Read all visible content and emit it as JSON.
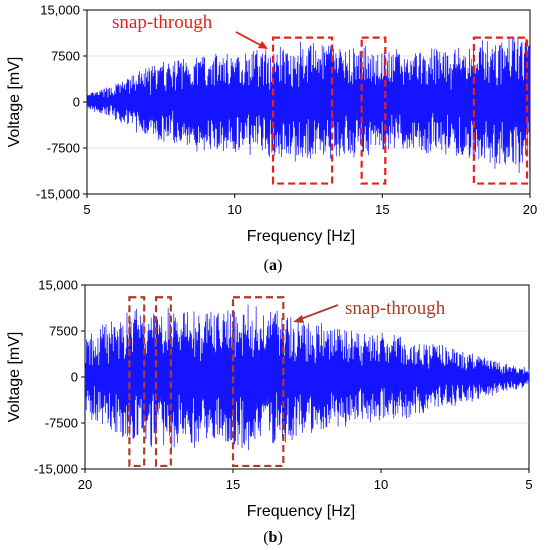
{
  "chart_data": [
    {
      "type": "line",
      "panel_label": "(a)",
      "caption_letter": "a",
      "xlabel": "Frequency [Hz]",
      "ylabel": "Voltage [mV]",
      "xlim": [
        5,
        20
      ],
      "ylim": [
        -15000,
        15000
      ],
      "x_reversed": false,
      "x_ticks": [
        5,
        10,
        15,
        20
      ],
      "y_ticks": [
        -15000,
        -7500,
        0,
        7500,
        15000
      ],
      "y_tick_labels": [
        "-15,000",
        "-7500",
        "0",
        "7500",
        "15,000"
      ],
      "x_tick_labels": [
        "5",
        "10",
        "15",
        "20"
      ],
      "series": [
        {
          "color": "#1414ff",
          "envelope": {
            "x": [
              5,
              6,
              7,
              8,
              9,
              10,
              11,
              12,
              13,
              14,
              15,
              16,
              17,
              18,
              19,
              20
            ],
            "amplitude": [
              1200,
              3000,
              5500,
              7000,
              7800,
              8200,
              8500,
              9500,
              9500,
              9000,
              8500,
              8000,
              8500,
              9500,
              10500,
              11500
            ]
          }
        }
      ],
      "annotation": {
        "text": "snap-through",
        "color": "#e8201a"
      },
      "highlight_boxes": [
        {
          "x": [
            11.3,
            13.3
          ],
          "y": [
            -13300,
            10500
          ]
        },
        {
          "x": [
            14.3,
            15.1
          ],
          "y": [
            -13300,
            10500
          ]
        },
        {
          "x": [
            18.1,
            19.9
          ],
          "y": [
            -13300,
            10500
          ]
        }
      ]
    },
    {
      "type": "line",
      "panel_label": "(b)",
      "caption_letter": "b",
      "xlabel": "Frequency [Hz]",
      "ylabel": "Voltage [mV]",
      "xlim": [
        20,
        5
      ],
      "ylim": [
        -15000,
        15000
      ],
      "x_reversed": true,
      "x_ticks": [
        20,
        15,
        10,
        5
      ],
      "y_ticks": [
        -15000,
        -7500,
        0,
        7500,
        15000
      ],
      "y_tick_labels": [
        "-15,000",
        "-7500",
        "0",
        "7500",
        "15,000"
      ],
      "x_tick_labels": [
        "20",
        "15",
        "10",
        "5"
      ],
      "series": [
        {
          "color": "#1414ff",
          "envelope": {
            "x": [
              20,
              19,
              18,
              17,
              16,
              15,
              14,
              13,
              12,
              11,
              10,
              9,
              8,
              7,
              6,
              5
            ],
            "amplitude": [
              6000,
              9500,
              11000,
              11500,
              10500,
              11500,
              11000,
              10000,
              8500,
              7500,
              7000,
              6500,
              5000,
              4000,
              2500,
              1500
            ]
          }
        }
      ],
      "annotation": {
        "text": "snap-through",
        "color": "#b03a2a"
      },
      "highlight_boxes": [
        {
          "x": [
            18.5,
            18.0
          ],
          "y": [
            -14500,
            13000
          ]
        },
        {
          "x": [
            17.6,
            17.1
          ],
          "y": [
            -14500,
            13000
          ]
        },
        {
          "x": [
            15.0,
            13.3
          ],
          "y": [
            -14500,
            13000
          ]
        }
      ]
    }
  ]
}
